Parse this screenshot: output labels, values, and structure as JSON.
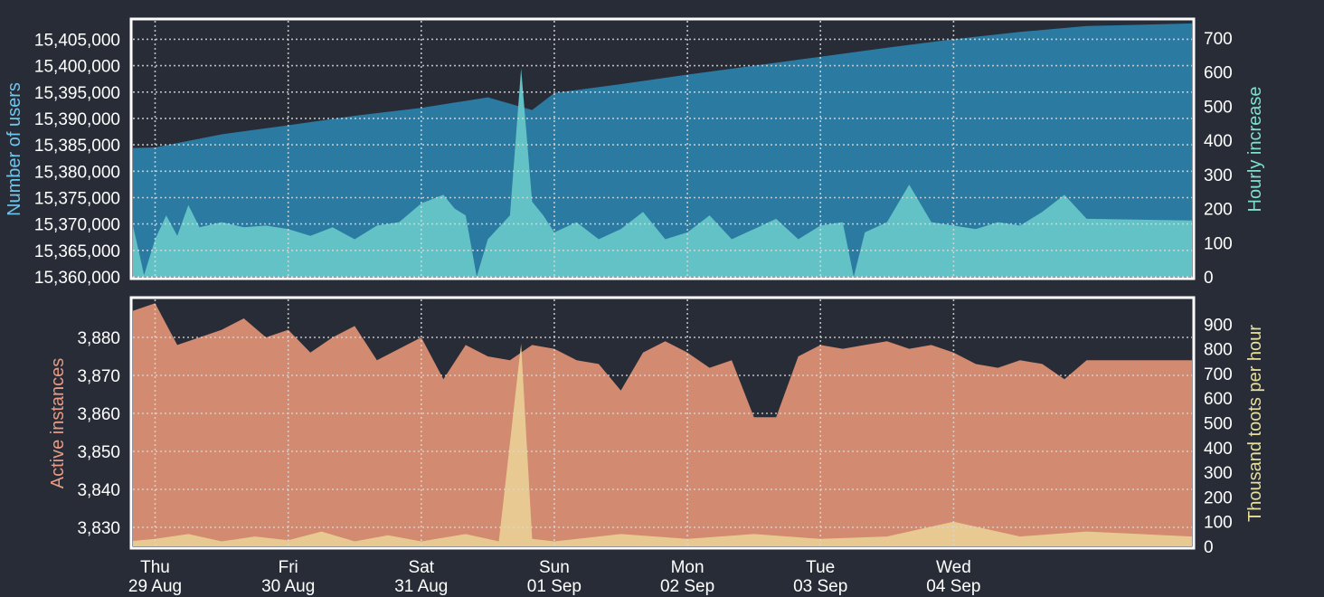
{
  "colors": {
    "background": "#282c37",
    "users_fill": "#2b7aa2",
    "hourly_fill": "#62c2c5",
    "instances_fill": "#d28a70",
    "toots_fill": "#e8c992",
    "frame": "#ffffff",
    "users_label": "#6dc6ef",
    "hourly_label": "#7fe0d0",
    "instances_label": "#e79b84",
    "toots_label": "#e8df9a"
  },
  "chart_data": [
    {
      "type": "area",
      "panel": "top",
      "grid": true,
      "ylabel_left": "Number of users",
      "ylabel_right": "Hourly increase",
      "left_ticks": [
        "15,360,000",
        "15,365,000",
        "15,370,000",
        "15,375,000",
        "15,380,000",
        "15,385,000",
        "15,390,000",
        "15,395,000",
        "15,400,000",
        "15,405,000"
      ],
      "right_ticks": [
        "0",
        "100",
        "200",
        "300",
        "400",
        "500",
        "600",
        "700"
      ],
      "ylim_left": [
        15360000,
        15408500
      ],
      "ylim_right": [
        0,
        750
      ],
      "x_start": "2019-08-28T20:00",
      "x_end": "2019-09-05T19:00",
      "series": [
        {
          "name": "Number of users",
          "axis": "left",
          "points": [
            [
              "2019-08-28T20:00",
              15384400
            ],
            [
              "2019-08-29T00:00",
              15384500
            ],
            [
              "2019-08-29T12:00",
              15387000
            ],
            [
              "2019-08-30T00:00",
              15388700
            ],
            [
              "2019-08-30T12:00",
              15390500
            ],
            [
              "2019-08-31T00:00",
              15392000
            ],
            [
              "2019-08-31T12:00",
              15394000
            ],
            [
              "2019-08-31T20:00",
              15391600
            ],
            [
              "2019-09-01T00:00",
              15394800
            ],
            [
              "2019-09-01T12:00",
              15396500
            ],
            [
              "2019-09-02T00:00",
              15398300
            ],
            [
              "2019-09-02T12:00",
              15400000
            ],
            [
              "2019-09-03T00:00",
              15401700
            ],
            [
              "2019-09-03T12:00",
              15403400
            ],
            [
              "2019-09-04T00:00",
              15405000
            ],
            [
              "2019-09-04T12:00",
              15406400
            ],
            [
              "2019-09-05T00:00",
              15407500
            ],
            [
              "2019-09-05T19:00",
              15408000
            ]
          ]
        },
        {
          "name": "Hourly increase",
          "axis": "right",
          "points": [
            [
              "2019-08-28T20:00",
              150
            ],
            [
              "2019-08-28T22:00",
              5
            ],
            [
              "2019-08-29T00:00",
              110
            ],
            [
              "2019-08-29T02:00",
              180
            ],
            [
              "2019-08-29T04:00",
              120
            ],
            [
              "2019-08-29T06:00",
              210
            ],
            [
              "2019-08-29T08:00",
              145
            ],
            [
              "2019-08-29T12:00",
              160
            ],
            [
              "2019-08-29T16:00",
              145
            ],
            [
              "2019-08-29T20:00",
              150
            ],
            [
              "2019-08-30T00:00",
              140
            ],
            [
              "2019-08-30T04:00",
              120
            ],
            [
              "2019-08-30T08:00",
              145
            ],
            [
              "2019-08-30T12:00",
              110
            ],
            [
              "2019-08-30T16:00",
              150
            ],
            [
              "2019-08-30T20:00",
              160
            ],
            [
              "2019-08-31T00:00",
              215
            ],
            [
              "2019-08-31T04:00",
              240
            ],
            [
              "2019-08-31T06:00",
              200
            ],
            [
              "2019-08-31T08:00",
              180
            ],
            [
              "2019-08-31T10:00",
              0
            ],
            [
              "2019-08-31T12:00",
              110
            ],
            [
              "2019-08-31T16:00",
              180
            ],
            [
              "2019-08-31T18:00",
              610
            ],
            [
              "2019-08-31T20:00",
              220
            ],
            [
              "2019-08-31T22:00",
              180
            ],
            [
              "2019-09-01T00:00",
              130
            ],
            [
              "2019-09-01T04:00",
              160
            ],
            [
              "2019-09-01T08:00",
              110
            ],
            [
              "2019-09-01T12:00",
              140
            ],
            [
              "2019-09-01T16:00",
              190
            ],
            [
              "2019-09-01T20:00",
              110
            ],
            [
              "2019-09-02T00:00",
              130
            ],
            [
              "2019-09-02T04:00",
              180
            ],
            [
              "2019-09-02T08:00",
              110
            ],
            [
              "2019-09-02T12:00",
              140
            ],
            [
              "2019-09-02T16:00",
              170
            ],
            [
              "2019-09-02T20:00",
              110
            ],
            [
              "2019-09-03T00:00",
              150
            ],
            [
              "2019-09-03T04:00",
              160
            ],
            [
              "2019-09-03T06:00",
              0
            ],
            [
              "2019-09-03T08:00",
              130
            ],
            [
              "2019-09-03T12:00",
              160
            ],
            [
              "2019-09-03T16:00",
              270
            ],
            [
              "2019-09-03T20:00",
              160
            ],
            [
              "2019-09-04T00:00",
              150
            ],
            [
              "2019-09-04T04:00",
              140
            ],
            [
              "2019-09-04T08:00",
              160
            ],
            [
              "2019-09-04T12:00",
              150
            ],
            [
              "2019-09-04T16:00",
              190
            ],
            [
              "2019-09-04T20:00",
              240
            ],
            [
              "2019-09-05T00:00",
              170
            ],
            [
              "2019-09-05T19:00",
              165
            ]
          ]
        }
      ]
    },
    {
      "type": "area",
      "panel": "bottom",
      "grid": true,
      "ylabel_left": "Active instances",
      "ylabel_right": "Thousand toots per hour",
      "left_ticks": [
        "3,830",
        "3,840",
        "3,850",
        "3,860",
        "3,870",
        "3,880"
      ],
      "right_ticks": [
        "0",
        "100",
        "200",
        "300",
        "400",
        "500",
        "600",
        "700",
        "800",
        "900"
      ],
      "ylim_left": [
        3825,
        3890
      ],
      "ylim_right": [
        0,
        1000
      ],
      "x_start": "2019-08-28T20:00",
      "x_end": "2019-09-05T19:00",
      "x_ticks": [
        {
          "t": "2019-08-29T00:00",
          "day": "Thu",
          "date": "29 Aug"
        },
        {
          "t": "2019-08-30T00:00",
          "day": "Fri",
          "date": "30 Aug"
        },
        {
          "t": "2019-08-31T00:00",
          "day": "Sat",
          "date": "31 Aug"
        },
        {
          "t": "2019-09-01T00:00",
          "day": "Sun",
          "date": "01 Sep"
        },
        {
          "t": "2019-09-02T00:00",
          "day": "Mon",
          "date": "02 Sep"
        },
        {
          "t": "2019-09-03T00:00",
          "day": "Tue",
          "date": "03 Sep"
        },
        {
          "t": "2019-09-04T00:00",
          "day": "Wed",
          "date": "04 Sep"
        }
      ],
      "series": [
        {
          "name": "Active instances",
          "axis": "left",
          "points": [
            [
              "2019-08-28T20:00",
              3887
            ],
            [
              "2019-08-29T00:00",
              3889
            ],
            [
              "2019-08-29T04:00",
              3878
            ],
            [
              "2019-08-29T08:00",
              3880
            ],
            [
              "2019-08-29T12:00",
              3882
            ],
            [
              "2019-08-29T16:00",
              3885
            ],
            [
              "2019-08-29T20:00",
              3880
            ],
            [
              "2019-08-30T00:00",
              3882
            ],
            [
              "2019-08-30T04:00",
              3876
            ],
            [
              "2019-08-30T08:00",
              3880
            ],
            [
              "2019-08-30T12:00",
              3883
            ],
            [
              "2019-08-30T16:00",
              3874
            ],
            [
              "2019-08-30T20:00",
              3877
            ],
            [
              "2019-08-31T00:00",
              3880
            ],
            [
              "2019-08-31T04:00",
              3869
            ],
            [
              "2019-08-31T08:00",
              3878
            ],
            [
              "2019-08-31T12:00",
              3875
            ],
            [
              "2019-08-31T16:00",
              3874
            ],
            [
              "2019-08-31T20:00",
              3878
            ],
            [
              "2019-09-01T00:00",
              3877
            ],
            [
              "2019-09-01T04:00",
              3874
            ],
            [
              "2019-09-01T08:00",
              3873
            ],
            [
              "2019-09-01T12:00",
              3866
            ],
            [
              "2019-09-01T16:00",
              3876
            ],
            [
              "2019-09-01T20:00",
              3879
            ],
            [
              "2019-09-02T00:00",
              3876
            ],
            [
              "2019-09-02T04:00",
              3872
            ],
            [
              "2019-09-02T08:00",
              3874
            ],
            [
              "2019-09-02T12:00",
              3859
            ],
            [
              "2019-09-02T16:00",
              3859
            ],
            [
              "2019-09-02T20:00",
              3875
            ],
            [
              "2019-09-03T00:00",
              3878
            ],
            [
              "2019-09-03T04:00",
              3877
            ],
            [
              "2019-09-03T08:00",
              3878
            ],
            [
              "2019-09-03T12:00",
              3879
            ],
            [
              "2019-09-03T16:00",
              3877
            ],
            [
              "2019-09-03T20:00",
              3878
            ],
            [
              "2019-09-04T00:00",
              3876
            ],
            [
              "2019-09-04T04:00",
              3873
            ],
            [
              "2019-09-04T08:00",
              3872
            ],
            [
              "2019-09-04T12:00",
              3874
            ],
            [
              "2019-09-04T16:00",
              3873
            ],
            [
              "2019-09-04T20:00",
              3869
            ],
            [
              "2019-09-05T00:00",
              3874
            ],
            [
              "2019-09-05T19:00",
              3874
            ]
          ]
        },
        {
          "name": "Thousand toots per hour",
          "axis": "right",
          "points": [
            [
              "2019-08-28T20:00",
              22
            ],
            [
              "2019-08-29T00:00",
              30
            ],
            [
              "2019-08-29T06:00",
              50
            ],
            [
              "2019-08-29T12:00",
              20
            ],
            [
              "2019-08-29T18:00",
              40
            ],
            [
              "2019-08-30T00:00",
              25
            ],
            [
              "2019-08-30T06:00",
              60
            ],
            [
              "2019-08-30T12:00",
              20
            ],
            [
              "2019-08-30T18:00",
              45
            ],
            [
              "2019-08-31T00:00",
              20
            ],
            [
              "2019-08-31T08:00",
              50
            ],
            [
              "2019-08-31T14:00",
              20
            ],
            [
              "2019-08-31T18:00",
              820
            ],
            [
              "2019-08-31T20:00",
              30
            ],
            [
              "2019-09-01T00:00",
              20
            ],
            [
              "2019-09-01T12:00",
              50
            ],
            [
              "2019-09-02T00:00",
              30
            ],
            [
              "2019-09-02T12:00",
              50
            ],
            [
              "2019-09-03T00:00",
              30
            ],
            [
              "2019-09-03T12:00",
              40
            ],
            [
              "2019-09-04T00:00",
              100
            ],
            [
              "2019-09-04T12:00",
              40
            ],
            [
              "2019-09-05T00:00",
              60
            ],
            [
              "2019-09-05T19:00",
              40
            ]
          ]
        }
      ]
    }
  ]
}
